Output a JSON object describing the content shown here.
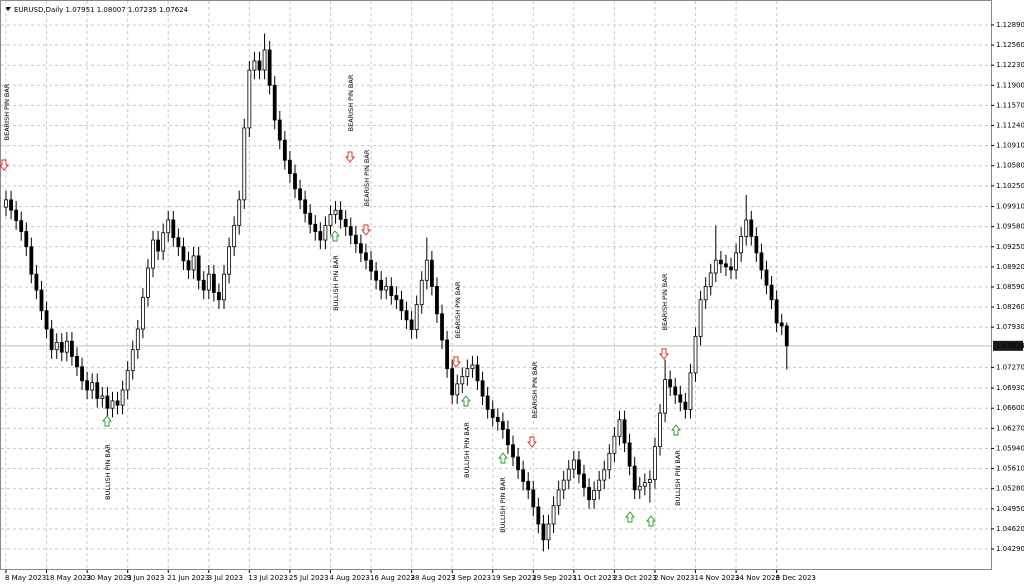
{
  "chart_data": {
    "type": "candlestick",
    "symbol": "EURUSD,Daily",
    "up_color": "#ffffff",
    "down_color": "#000000",
    "grid": true,
    "ylim": [
      1.03945,
      1.13218
    ],
    "yticks": [
      {
        "value": 1.1289,
        "label": "1.12890"
      },
      {
        "value": 1.1256,
        "label": "1.12560"
      },
      {
        "value": 1.1223,
        "label": "1.12230"
      },
      {
        "value": 1.119,
        "label": "1.11900"
      },
      {
        "value": 1.1157,
        "label": "1.11570"
      },
      {
        "value": 1.1124,
        "label": "1.11240"
      },
      {
        "value": 1.1091,
        "label": "1.10910"
      },
      {
        "value": 1.1058,
        "label": "1.10580"
      },
      {
        "value": 1.1025,
        "label": "1.10250"
      },
      {
        "value": 1.0991,
        "label": "1.09910"
      },
      {
        "value": 1.0958,
        "label": "1.09580"
      },
      {
        "value": 1.0925,
        "label": "1.09250"
      },
      {
        "value": 1.0892,
        "label": "1.08920"
      },
      {
        "value": 1.0859,
        "label": "1.08590"
      },
      {
        "value": 1.0826,
        "label": "1.08260"
      },
      {
        "value": 1.0793,
        "label": "1.07930"
      },
      {
        "value": 1.0727,
        "label": "1.07270"
      },
      {
        "value": 1.0693,
        "label": "1.06930"
      },
      {
        "value": 1.066,
        "label": "1.06600"
      },
      {
        "value": 1.0627,
        "label": "1.06270"
      },
      {
        "value": 1.0594,
        "label": "1.05940"
      },
      {
        "value": 1.0561,
        "label": "1.05610"
      },
      {
        "value": 1.0528,
        "label": "1.05280"
      },
      {
        "value": 1.0495,
        "label": "1.04950"
      },
      {
        "value": 1.0462,
        "label": "1.04620"
      },
      {
        "value": 1.0429,
        "label": "1.04290"
      }
    ],
    "categories": [
      "8 May 2023",
      null,
      null,
      null,
      null,
      null,
      null,
      null,
      "18 May 2023",
      null,
      null,
      null,
      null,
      null,
      null,
      null,
      "30 May 2023",
      null,
      null,
      null,
      null,
      null,
      null,
      null,
      "9 Jun 2023",
      null,
      null,
      null,
      null,
      null,
      null,
      null,
      "21 Jun 2023",
      null,
      null,
      null,
      null,
      null,
      null,
      null,
      "3 Jul 2023",
      null,
      null,
      null,
      null,
      null,
      null,
      null,
      "13 Jul 2023",
      null,
      null,
      null,
      null,
      null,
      null,
      null,
      "25 Jul 2023",
      null,
      null,
      null,
      null,
      null,
      null,
      null,
      "4 Aug 2023",
      null,
      null,
      null,
      null,
      null,
      null,
      null,
      "16 Aug 2023",
      null,
      null,
      null,
      null,
      null,
      null,
      null,
      "28 Aug 2023",
      null,
      null,
      null,
      null,
      null,
      null,
      null,
      "7 Sep 2023",
      null,
      null,
      null,
      null,
      null,
      null,
      null,
      "19 Sep 2023",
      null,
      null,
      null,
      null,
      null,
      null,
      null,
      "29 Sep 2023",
      null,
      null,
      null,
      null,
      null,
      null,
      null,
      "11 Oct 2023",
      null,
      null,
      null,
      null,
      null,
      null,
      null,
      "23 Oct 2023",
      null,
      null,
      null,
      null,
      null,
      null,
      null,
      "2 Nov 2023",
      null,
      null,
      null,
      null,
      null,
      null,
      null,
      "14 Nov 2023",
      null,
      null,
      null,
      null,
      null,
      null,
      null,
      "24 Nov 2023",
      null,
      null,
      null,
      null,
      null,
      null,
      null,
      "6 Dec 2023",
      null,
      null
    ],
    "ohlc": [
      [
        1.099,
        1.1017,
        1.0975,
        1.1002
      ],
      [
        1.1002,
        1.1017,
        1.097,
        1.0985
      ],
      [
        1.0985,
        1.1,
        1.0953,
        1.0968
      ],
      [
        1.0968,
        1.0983,
        1.0935,
        1.095
      ],
      [
        1.095,
        1.0965,
        1.091,
        1.0925
      ],
      [
        1.0925,
        1.094,
        1.0865,
        1.088
      ],
      [
        1.088,
        1.0895,
        1.0839,
        1.0854
      ],
      [
        1.0854,
        1.0869,
        1.0805,
        1.082
      ],
      [
        1.082,
        1.0835,
        1.0775,
        1.079
      ],
      [
        1.079,
        1.0805,
        1.0741,
        1.0756
      ],
      [
        1.0756,
        1.0783,
        1.0741,
        1.0768
      ],
      [
        1.0768,
        1.0783,
        1.0737,
        1.0752
      ],
      [
        1.0752,
        1.0785,
        1.0737,
        1.077
      ],
      [
        1.077,
        1.0785,
        1.073,
        1.0745
      ],
      [
        1.0745,
        1.076,
        1.0713,
        1.0728
      ],
      [
        1.0728,
        1.0743,
        1.069,
        1.0705
      ],
      [
        1.0705,
        1.072,
        1.0675,
        1.069
      ],
      [
        1.069,
        1.0717,
        1.0675,
        1.0702
      ],
      [
        1.0702,
        1.0717,
        1.0661,
        1.0676
      ],
      [
        1.0676,
        1.0695,
        1.0661,
        1.068
      ],
      [
        1.068,
        1.0695,
        1.0635,
        1.066
      ],
      [
        1.066,
        1.0687,
        1.0645,
        1.0672
      ],
      [
        1.0672,
        1.0687,
        1.065,
        1.0665
      ],
      [
        1.0665,
        1.0705,
        1.065,
        1.069
      ],
      [
        1.069,
        1.0737,
        1.0675,
        1.0722
      ],
      [
        1.0722,
        1.0771,
        1.0707,
        1.0756
      ],
      [
        1.0756,
        1.0805,
        1.0741,
        1.079
      ],
      [
        1.079,
        1.0857,
        1.0775,
        1.0842
      ],
      [
        1.0842,
        1.0905,
        1.0827,
        1.089
      ],
      [
        1.089,
        1.0951,
        1.0875,
        1.0936
      ],
      [
        1.0936,
        1.0951,
        1.0903,
        1.0918
      ],
      [
        1.0918,
        1.0963,
        1.0903,
        1.0948
      ],
      [
        1.0948,
        1.0984,
        1.0933,
        1.0969
      ],
      [
        1.0969,
        1.0984,
        1.0925,
        1.094
      ],
      [
        1.094,
        1.0955,
        1.091,
        1.0925
      ],
      [
        1.0925,
        1.094,
        1.0887,
        1.0902
      ],
      [
        1.0902,
        1.0917,
        1.0872,
        1.0887
      ],
      [
        1.0887,
        1.0925,
        1.0872,
        1.091
      ],
      [
        1.091,
        1.0925,
        1.0855,
        1.087
      ],
      [
        1.087,
        1.0885,
        1.0839,
        1.0854
      ],
      [
        1.0854,
        1.0895,
        1.0839,
        1.088
      ],
      [
        1.088,
        1.0895,
        1.0835,
        1.085
      ],
      [
        1.085,
        1.0865,
        1.0823,
        1.0838
      ],
      [
        1.0838,
        1.0895,
        1.0823,
        1.088
      ],
      [
        1.088,
        1.094,
        1.0865,
        1.0925
      ],
      [
        1.0925,
        1.0975,
        1.091,
        1.096
      ],
      [
        1.096,
        1.1017,
        1.0945,
        1.1002
      ],
      [
        1.1002,
        1.1135,
        1.0987,
        1.112
      ],
      [
        1.112,
        1.123,
        1.1105,
        1.1215
      ],
      [
        1.1215,
        1.1245,
        1.12,
        1.123
      ],
      [
        1.123,
        1.1245,
        1.12,
        1.1215
      ],
      [
        1.1215,
        1.1275,
        1.12,
        1.1248
      ],
      [
        1.1248,
        1.1263,
        1.1175,
        1.119
      ],
      [
        1.119,
        1.1205,
        1.1118,
        1.1133
      ],
      [
        1.1133,
        1.1148,
        1.1085,
        1.11
      ],
      [
        1.11,
        1.1115,
        1.1052,
        1.1067
      ],
      [
        1.1067,
        1.1082,
        1.103,
        1.1045
      ],
      [
        1.1045,
        1.106,
        1.1005,
        1.102
      ],
      [
        1.102,
        1.1035,
        1.0987,
        1.1002
      ],
      [
        1.1002,
        1.1017,
        1.0965,
        1.098
      ],
      [
        1.098,
        1.0995,
        1.0947,
        1.0962
      ],
      [
        1.0962,
        1.0977,
        1.0935,
        1.095
      ],
      [
        1.095,
        1.0965,
        1.0921,
        1.0936
      ],
      [
        1.0936,
        1.0975,
        1.0921,
        1.096
      ],
      [
        1.096,
        1.0993,
        1.0945,
        1.0978
      ],
      [
        1.0978,
        1.1,
        1.0963,
        1.0985
      ],
      [
        1.0985,
        1.1,
        1.0955,
        1.097
      ],
      [
        1.097,
        1.0985,
        1.0943,
        1.0958
      ],
      [
        1.0958,
        1.0973,
        1.0929,
        1.0944
      ],
      [
        1.0944,
        1.0959,
        1.0915,
        1.093
      ],
      [
        1.093,
        1.0945,
        1.09,
        1.0915
      ],
      [
        1.0915,
        1.093,
        1.0888,
        1.0903
      ],
      [
        1.0903,
        1.0918,
        1.087,
        1.0885
      ],
      [
        1.0885,
        1.09,
        1.0855,
        1.087
      ],
      [
        1.087,
        1.0885,
        1.0839,
        1.0854
      ],
      [
        1.0854,
        1.0875,
        1.0839,
        1.086
      ],
      [
        1.086,
        1.0875,
        1.083,
        1.0845
      ],
      [
        1.0845,
        1.086,
        1.0823,
        1.0838
      ],
      [
        1.0838,
        1.0853,
        1.0805,
        1.082
      ],
      [
        1.082,
        1.0835,
        1.079,
        1.0805
      ],
      [
        1.0805,
        1.082,
        1.0774,
        1.0789
      ],
      [
        1.0789,
        1.0845,
        1.0774,
        1.083
      ],
      [
        1.083,
        1.0885,
        1.0815,
        1.087
      ],
      [
        1.087,
        1.094,
        1.0855,
        1.0903
      ],
      [
        1.0903,
        1.0918,
        1.0845,
        1.086
      ],
      [
        1.086,
        1.0875,
        1.08,
        1.0815
      ],
      [
        1.0815,
        1.083,
        1.0757,
        1.0772
      ],
      [
        1.0772,
        1.0787,
        1.071,
        1.0725
      ],
      [
        1.0725,
        1.074,
        1.0667,
        1.0682
      ],
      [
        1.0682,
        1.0715,
        1.0667,
        1.07
      ],
      [
        1.07,
        1.0727,
        1.0685,
        1.0712
      ],
      [
        1.0712,
        1.074,
        1.0697,
        1.0725
      ],
      [
        1.0725,
        1.0746,
        1.071,
        1.0731
      ],
      [
        1.0731,
        1.0746,
        1.069,
        1.0705
      ],
      [
        1.0705,
        1.072,
        1.0665,
        1.068
      ],
      [
        1.068,
        1.0695,
        1.0643,
        1.0658
      ],
      [
        1.0658,
        1.0673,
        1.063,
        1.0645
      ],
      [
        1.0645,
        1.066,
        1.0623,
        1.0638
      ],
      [
        1.0638,
        1.0653,
        1.061,
        1.0625
      ],
      [
        1.0625,
        1.064,
        1.0585,
        1.06
      ],
      [
        1.06,
        1.0615,
        1.0565,
        1.058
      ],
      [
        1.058,
        1.0595,
        1.0544,
        1.0559
      ],
      [
        1.0559,
        1.0574,
        1.0525,
        1.054
      ],
      [
        1.054,
        1.0555,
        1.0511,
        1.0526
      ],
      [
        1.0526,
        1.0541,
        1.0483,
        1.0498
      ],
      [
        1.0498,
        1.0513,
        1.0455,
        1.047
      ],
      [
        1.047,
        1.0485,
        1.0425,
        1.0444
      ],
      [
        1.0444,
        1.0485,
        1.0429,
        1.047
      ],
      [
        1.047,
        1.0515,
        1.0455,
        1.05
      ],
      [
        1.05,
        1.0541,
        1.0485,
        1.0526
      ],
      [
        1.0526,
        1.0557,
        1.0511,
        1.0542
      ],
      [
        1.0542,
        1.0575,
        1.0527,
        1.056
      ],
      [
        1.056,
        1.059,
        1.0545,
        1.0575
      ],
      [
        1.0575,
        1.059,
        1.0537,
        1.0552
      ],
      [
        1.0552,
        1.0567,
        1.0515,
        1.053
      ],
      [
        1.053,
        1.0545,
        1.0495,
        1.051
      ],
      [
        1.051,
        1.054,
        1.0495,
        1.0525
      ],
      [
        1.0525,
        1.0557,
        1.051,
        1.0542
      ],
      [
        1.0542,
        1.0574,
        1.0527,
        1.0559
      ],
      [
        1.0559,
        1.0601,
        1.0544,
        1.0586
      ],
      [
        1.0586,
        1.0629,
        1.0571,
        1.0614
      ],
      [
        1.0614,
        1.0656,
        1.0599,
        1.0641
      ],
      [
        1.0641,
        1.0656,
        1.0588,
        1.0603
      ],
      [
        1.0603,
        1.0618,
        1.055,
        1.0565
      ],
      [
        1.0565,
        1.058,
        1.0511,
        1.0526
      ],
      [
        1.0526,
        1.0547,
        1.0511,
        1.0532
      ],
      [
        1.0532,
        1.0553,
        1.0517,
        1.0538
      ],
      [
        1.0538,
        1.0558,
        1.0505,
        1.0543
      ],
      [
        1.0543,
        1.0612,
        1.0528,
        1.0597
      ],
      [
        1.0597,
        1.0667,
        1.0582,
        1.0652
      ],
      [
        1.0652,
        1.074,
        1.0637,
        1.0707
      ],
      [
        1.0707,
        1.0722,
        1.068,
        1.0695
      ],
      [
        1.0695,
        1.071,
        1.0667,
        1.0682
      ],
      [
        1.0682,
        1.0697,
        1.0655,
        1.067
      ],
      [
        1.067,
        1.0685,
        1.0643,
        1.0658
      ],
      [
        1.0658,
        1.0733,
        1.0643,
        1.0718
      ],
      [
        1.0718,
        1.0793,
        1.0703,
        1.0778
      ],
      [
        1.0778,
        1.0853,
        1.0763,
        1.0838
      ],
      [
        1.0838,
        1.0875,
        1.0823,
        1.086
      ],
      [
        1.086,
        1.0897,
        1.0845,
        1.0882
      ],
      [
        1.0882,
        1.096,
        1.0867,
        1.0903
      ],
      [
        1.0903,
        1.0918,
        1.0882,
        1.0897
      ],
      [
        1.0897,
        1.0912,
        1.0877,
        1.0892
      ],
      [
        1.0892,
        1.0907,
        1.0872,
        1.0887
      ],
      [
        1.0887,
        1.093,
        1.0872,
        1.0915
      ],
      [
        1.0915,
        1.0957,
        1.09,
        1.0942
      ],
      [
        1.0942,
        1.101,
        1.0927,
        1.0969
      ],
      [
        1.0969,
        1.0984,
        1.0927,
        1.0942
      ],
      [
        1.0942,
        1.0957,
        1.09,
        1.0915
      ],
      [
        1.0915,
        1.093,
        1.0872,
        1.0887
      ],
      [
        1.0887,
        1.0902,
        1.0847,
        1.0862
      ],
      [
        1.0862,
        1.0877,
        1.0823,
        1.0838
      ],
      [
        1.0838,
        1.0853,
        1.0785,
        1.08
      ],
      [
        1.08,
        1.0815,
        1.078,
        1.07951
      ],
      [
        1.07951,
        1.08007,
        1.07235,
        1.07624
      ]
    ],
    "annotations": [
      {
        "text": "BEARISH PIN BAR",
        "color": "#e0271f"
      },
      {
        "text": "BEARISH PIN BAR",
        "color": "#e0271f"
      },
      {
        "text": "BEARISH PIN BAR",
        "color": "#e0271f"
      },
      {
        "text": "BEARISH PIN BAR",
        "color": "#e0271f"
      },
      {
        "text": "BEARISH PIN BAR",
        "color": "#e0271f"
      },
      {
        "text": "BEARISH PIN BAR",
        "color": "#e0271f"
      },
      {
        "text": "BULLISH PIN BAR",
        "color": "#1f9a2a"
      },
      {
        "text": "BULLISH PIN BAR",
        "color": "#1f9a2a"
      },
      {
        "text": "BULLISH PIN BAR",
        "color": "#1f9a2a"
      },
      {
        "text": "BULLISH PIN BAR",
        "color": "#1f9a2a"
      },
      {
        "text": "BULLISH PIN BAR",
        "color": "#1f9a2a"
      }
    ]
  }
}
